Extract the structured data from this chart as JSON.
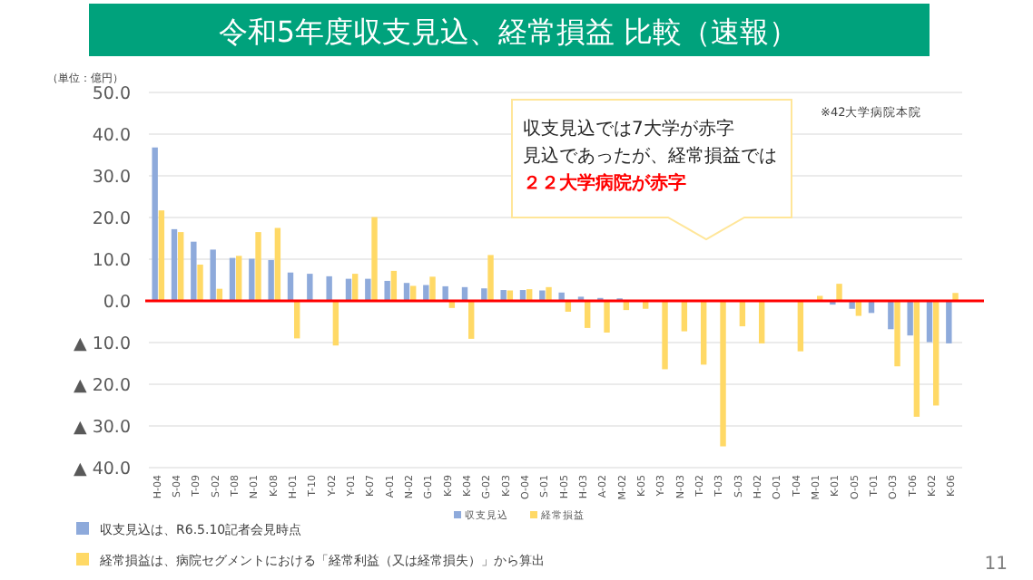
{
  "chart_data": {
    "type": "bar",
    "title": "令和5年度収支見込、経常損益 比較（速報）",
    "ylabel": "（単位：億円）",
    "categories": [
      "H-04",
      "S-04",
      "T-09",
      "S-02",
      "T-08",
      "N-01",
      "K-08",
      "H-01",
      "T-10",
      "Y-02",
      "Y-01",
      "K-07",
      "A-01",
      "N-02",
      "G-01",
      "K-09",
      "K-04",
      "G-02",
      "K-03",
      "O-04",
      "S-01",
      "H-05",
      "H-03",
      "A-02",
      "M-02",
      "K-05",
      "Y-03",
      "N-03",
      "T-02",
      "T-03",
      "S-03",
      "H-02",
      "O-01",
      "T-04",
      "M-01",
      "K-01",
      "O-05",
      "T-01",
      "O-03",
      "T-06",
      "K-02",
      "K-06"
    ],
    "series": [
      {
        "name": "収支見込",
        "color": "#8eaadb",
        "values": [
          36.8,
          17.2,
          14.2,
          12.3,
          10.3,
          10.1,
          9.8,
          6.8,
          6.5,
          5.9,
          5.3,
          5.3,
          4.8,
          4.3,
          3.8,
          3.5,
          3.3,
          3.0,
          2.6,
          2.6,
          2.5,
          2.0,
          1.0,
          0.7,
          0.6,
          null,
          null,
          null,
          null,
          null,
          null,
          null,
          null,
          null,
          null,
          -0.9,
          -1.9,
          -2.9,
          -6.8,
          -8.3,
          -9.9,
          -10.2
        ]
      },
      {
        "name": "経常損益",
        "color": "#ffd966",
        "values": [
          21.7,
          16.5,
          8.7,
          2.9,
          10.8,
          16.5,
          17.5,
          -9.0,
          null,
          -10.7,
          6.5,
          20.1,
          7.2,
          3.6,
          5.8,
          -1.7,
          -9.1,
          11.0,
          2.5,
          2.8,
          3.3,
          -2.6,
          -6.5,
          -7.6,
          -2.2,
          -1.9,
          -16.4,
          -7.3,
          -15.3,
          -34.9,
          -6.1,
          -10.2,
          null,
          -12.1,
          1.2,
          4.1,
          -3.6,
          null,
          -15.7,
          -27.8,
          -25.1,
          1.9
        ]
      }
    ],
    "ylim": [
      -40,
      50
    ],
    "yticks": [
      {
        "value": -40,
        "label": "▲ 40.0"
      },
      {
        "value": -30,
        "label": "▲ 30.0"
      },
      {
        "value": -20,
        "label": "▲ 20.0"
      },
      {
        "value": -10,
        "label": "▲ 10.0"
      },
      {
        "value": 0,
        "label": "0.0"
      },
      {
        "value": 10,
        "label": "10.0"
      },
      {
        "value": 20,
        "label": "20.0"
      },
      {
        "value": 30,
        "label": "30.0"
      },
      {
        "value": 40,
        "label": "40.0"
      },
      {
        "value": 50,
        "label": "50.0"
      }
    ],
    "grid": "y",
    "legend": "bottom",
    "ref_lines": [
      {
        "axis": "y",
        "value": 0,
        "color": "#ff0000"
      }
    ],
    "annotations": [
      "※42大学病院本院",
      "収支見込では7大学が赤字",
      "見込であったが、経常損益では",
      "２２大学病院が赤字",
      "収支見込は、R6.5.10記者会見時点",
      "経常損益は、病院セグメントにおける「経常利益（又は経常損失）」から算出",
      "11"
    ]
  }
}
